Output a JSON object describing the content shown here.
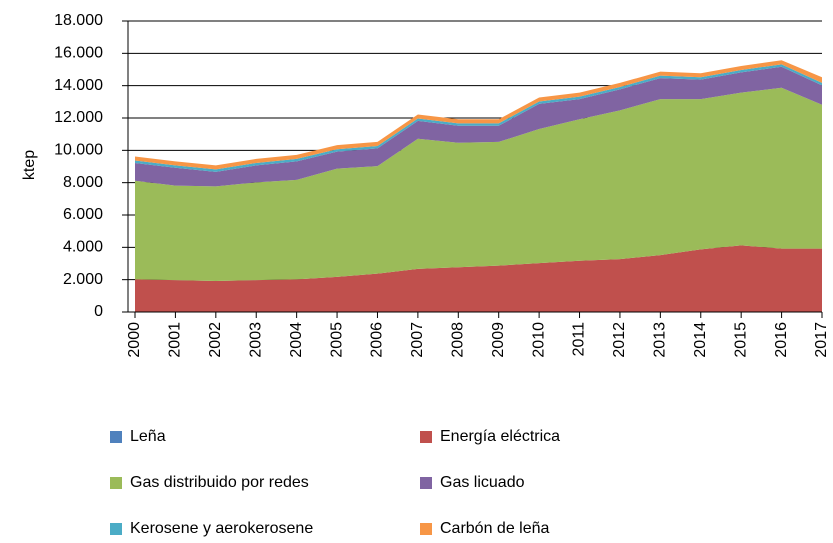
{
  "chart_data": {
    "type": "stacked_area",
    "ylabel": "ktep",
    "categories": [
      "2000",
      "2001",
      "2002",
      "2003",
      "2004",
      "2005",
      "2006",
      "2007",
      "2008",
      "2009",
      "2010",
      "2011",
      "2012",
      "2013",
      "2014",
      "2015",
      "2016",
      "2017"
    ],
    "series": [
      {
        "name": "Leña",
        "color": "#4f81bd",
        "values": [
          20,
          20,
          20,
          20,
          20,
          20,
          20,
          20,
          20,
          20,
          20,
          20,
          20,
          20,
          20,
          20,
          20,
          20
        ]
      },
      {
        "name": "Energía eléctrica",
        "color": "#c0504d",
        "values": [
          2000,
          1950,
          1900,
          1950,
          2000,
          2150,
          2350,
          2650,
          2750,
          2850,
          3000,
          3150,
          3250,
          3500,
          3850,
          4100,
          3900,
          3900
        ]
      },
      {
        "name": "Gas distribuido por redes",
        "color": "#9bbb59",
        "values": [
          6100,
          5850,
          5850,
          6050,
          6150,
          6700,
          6650,
          8050,
          7700,
          7650,
          8300,
          8750,
          9200,
          9650,
          9300,
          9450,
          9950,
          8900
        ]
      },
      {
        "name": "Gas licuado",
        "color": "#8064a2",
        "values": [
          1100,
          1100,
          900,
          1050,
          1150,
          1050,
          1100,
          1100,
          1050,
          1000,
          1550,
          1250,
          1300,
          1300,
          1200,
          1250,
          1300,
          1200
        ]
      },
      {
        "name": "Kerosene y aerokerosene",
        "color": "#4bacc6",
        "values": [
          150,
          150,
          150,
          150,
          150,
          150,
          150,
          150,
          150,
          150,
          150,
          150,
          150,
          150,
          150,
          150,
          150,
          150
        ]
      },
      {
        "name": "Carbón de leña",
        "color": "#f79646",
        "values": [
          250,
          250,
          250,
          250,
          250,
          250,
          250,
          250,
          250,
          250,
          250,
          250,
          250,
          250,
          250,
          250,
          250,
          350
        ]
      }
    ],
    "ylim": [
      0,
      18000
    ],
    "yticks": [
      0,
      {
        "value": 2000,
        "label": "2.000"
      },
      {
        "value": 4000,
        "label": "4.000"
      },
      {
        "value": 6000,
        "label": "6.000"
      },
      {
        "value": 8000,
        "label": "8.000"
      },
      {
        "value": 10000,
        "label": "10.000"
      },
      {
        "value": 12000,
        "label": "12.000"
      },
      {
        "value": 14000,
        "label": "14.000"
      },
      {
        "value": 16000,
        "label": "16.000"
      },
      {
        "value": 18000,
        "label": "18.000"
      }
    ],
    "grid": true
  }
}
